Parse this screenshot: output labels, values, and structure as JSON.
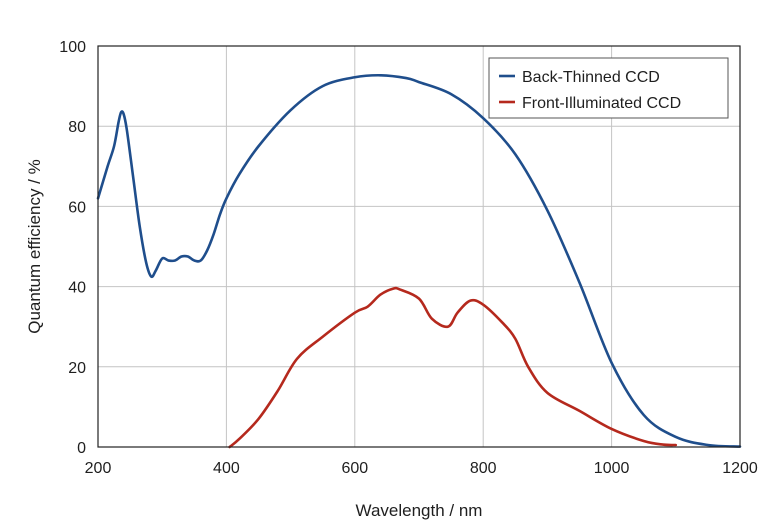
{
  "chart_data": {
    "type": "line",
    "title": "",
    "xlabel": "Wavelength / nm",
    "ylabel": "Quantum efficiency / %",
    "xlim": [
      200,
      1200
    ],
    "ylim": [
      0,
      100
    ],
    "xticks": [
      200,
      400,
      600,
      800,
      1000,
      1200
    ],
    "yticks": [
      0,
      20,
      40,
      60,
      80,
      100
    ],
    "xtick_labels": [
      "200",
      "400",
      "600",
      "800",
      "1000",
      "1200"
    ],
    "ytick_labels": [
      "0",
      "20",
      "40",
      "60",
      "80",
      "100"
    ],
    "grid": true,
    "legend_position": "top-right",
    "series": [
      {
        "name": "Back-Thinned CCD",
        "color": "#1f4e8c",
        "x": [
          200,
          215,
          225,
          232,
          236,
          240,
          245,
          255,
          265,
          275,
          283,
          290,
          300,
          310,
          320,
          330,
          340,
          350,
          360,
          370,
          380,
          390,
          400,
          420,
          450,
          500,
          550,
          600,
          640,
          680,
          700,
          750,
          800,
          850,
          900,
          950,
          1000,
          1050,
          1100,
          1150,
          1200
        ],
        "y": [
          62,
          70,
          75,
          81,
          83.5,
          83,
          79,
          67,
          55,
          46,
          42.5,
          44,
          47,
          46.5,
          46.5,
          47.5,
          47.5,
          46.5,
          46.5,
          49,
          53,
          58,
          62,
          68,
          75,
          84,
          90,
          92.2,
          92.7,
          92,
          91,
          88,
          82,
          73,
          59,
          41,
          21,
          8,
          2.5,
          0.5,
          0.1
        ]
      },
      {
        "name": "Front-Illuminated CCD",
        "color": "#b5291d",
        "x": [
          405,
          420,
          450,
          480,
          510,
          550,
          600,
          620,
          640,
          660,
          670,
          700,
          720,
          745,
          760,
          780,
          800,
          830,
          850,
          870,
          900,
          950,
          1000,
          1050,
          1080,
          1100
        ],
        "y": [
          0,
          2,
          7,
          14,
          22,
          27.5,
          33.5,
          35,
          38,
          39.5,
          39.3,
          37,
          32,
          30,
          33.5,
          36.5,
          35.5,
          31,
          27,
          20,
          13.5,
          9,
          4.5,
          1.5,
          0.6,
          0.5
        ]
      }
    ]
  }
}
